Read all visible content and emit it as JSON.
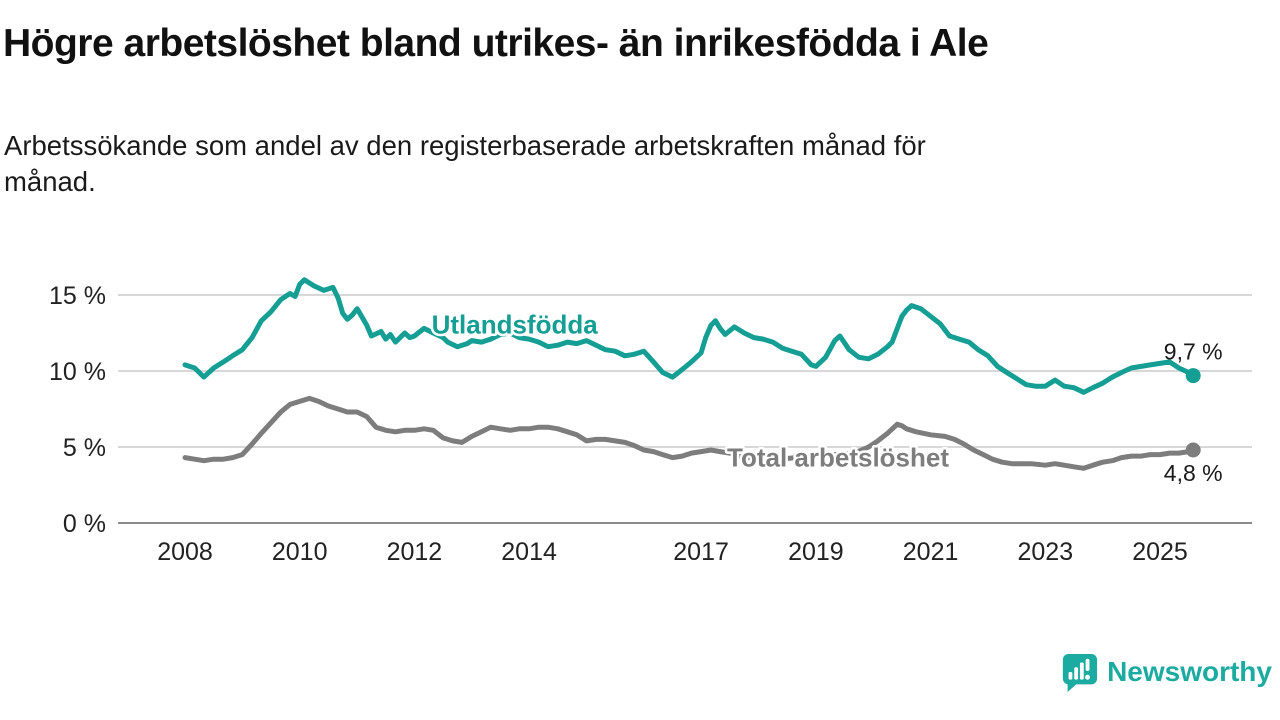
{
  "page": {
    "title": "Högre arbetslöshet bland utrikes- än inrikesfödda i Ale",
    "subtitle": "Arbetssökande som andel av den registerbaserade arbetskraften månad för månad."
  },
  "branding": {
    "name": "Newsworthy",
    "logo_icon": "bar-chart-speech-bubble",
    "color": "#1CABA1"
  },
  "chart_data": {
    "type": "line",
    "title": "Högre arbetslöshet bland utrikes- än inrikesfödda i Ale",
    "subtitle": "Arbetssökande som andel av den registerbaserade arbetskraften månad för månad.",
    "xlabel": "",
    "ylabel": "",
    "ylim": [
      0,
      16.5
    ],
    "xlim": [
      2007.2,
      2026.3
    ],
    "grid": "horizontal",
    "legend_position": "inline-labels",
    "y_ticks": [
      {
        "value": 0,
        "label": "0 %"
      },
      {
        "value": 5,
        "label": "5 %"
      },
      {
        "value": 10,
        "label": "10 %"
      },
      {
        "value": 15,
        "label": "15 %"
      }
    ],
    "x_ticks": [
      {
        "value": 2008,
        "label": "2008"
      },
      {
        "value": 2010,
        "label": "2010"
      },
      {
        "value": 2012,
        "label": "2012"
      },
      {
        "value": 2014,
        "label": "2014"
      },
      {
        "value": 2017,
        "label": "2017"
      },
      {
        "value": 2019,
        "label": "2019"
      },
      {
        "value": 2021,
        "label": "2021"
      },
      {
        "value": 2023,
        "label": "2023"
      },
      {
        "value": 2025,
        "label": "2025"
      }
    ],
    "series": [
      {
        "name": "Total arbetslöshet",
        "color": "#7D7D7D",
        "end_label": "4,8 %",
        "end_label_pos": "below",
        "points": [
          [
            2008.0,
            4.3
          ],
          [
            2008.17,
            4.2
          ],
          [
            2008.33,
            4.1
          ],
          [
            2008.5,
            4.2
          ],
          [
            2008.67,
            4.2
          ],
          [
            2008.83,
            4.3
          ],
          [
            2009.0,
            4.5
          ],
          [
            2009.17,
            5.2
          ],
          [
            2009.33,
            5.9
          ],
          [
            2009.5,
            6.6
          ],
          [
            2009.67,
            7.3
          ],
          [
            2009.83,
            7.8
          ],
          [
            2010.0,
            8.0
          ],
          [
            2010.17,
            8.2
          ],
          [
            2010.33,
            8.0
          ],
          [
            2010.5,
            7.7
          ],
          [
            2010.67,
            7.5
          ],
          [
            2010.83,
            7.3
          ],
          [
            2011.0,
            7.3
          ],
          [
            2011.17,
            7.0
          ],
          [
            2011.33,
            6.3
          ],
          [
            2011.5,
            6.1
          ],
          [
            2011.67,
            6.0
          ],
          [
            2011.83,
            6.1
          ],
          [
            2012.0,
            6.1
          ],
          [
            2012.17,
            6.2
          ],
          [
            2012.33,
            6.1
          ],
          [
            2012.5,
            5.6
          ],
          [
            2012.67,
            5.4
          ],
          [
            2012.83,
            5.3
          ],
          [
            2013.0,
            5.7
          ],
          [
            2013.17,
            6.0
          ],
          [
            2013.33,
            6.3
          ],
          [
            2013.5,
            6.2
          ],
          [
            2013.67,
            6.1
          ],
          [
            2013.83,
            6.2
          ],
          [
            2014.0,
            6.2
          ],
          [
            2014.17,
            6.3
          ],
          [
            2014.33,
            6.3
          ],
          [
            2014.5,
            6.2
          ],
          [
            2014.67,
            6.0
          ],
          [
            2014.83,
            5.8
          ],
          [
            2015.0,
            5.4
          ],
          [
            2015.17,
            5.5
          ],
          [
            2015.33,
            5.5
          ],
          [
            2015.5,
            5.4
          ],
          [
            2015.67,
            5.3
          ],
          [
            2015.83,
            5.1
          ],
          [
            2016.0,
            4.8
          ],
          [
            2016.17,
            4.7
          ],
          [
            2016.33,
            4.5
          ],
          [
            2016.5,
            4.3
          ],
          [
            2016.67,
            4.4
          ],
          [
            2016.83,
            4.6
          ],
          [
            2017.0,
            4.7
          ],
          [
            2017.17,
            4.8
          ],
          [
            2017.33,
            4.7
          ],
          [
            2017.5,
            4.6
          ],
          [
            2017.67,
            4.4
          ],
          [
            2017.83,
            4.3
          ],
          [
            2018.0,
            4.3
          ],
          [
            2018.33,
            4.2
          ],
          [
            2018.67,
            4.3
          ],
          [
            2019.0,
            4.4
          ],
          [
            2019.33,
            4.5
          ],
          [
            2019.67,
            4.6
          ],
          [
            2019.92,
            5.0
          ],
          [
            2020.08,
            5.4
          ],
          [
            2020.25,
            5.9
          ],
          [
            2020.42,
            6.5
          ],
          [
            2020.5,
            6.4
          ],
          [
            2020.58,
            6.2
          ],
          [
            2020.75,
            6.0
          ],
          [
            2021.0,
            5.8
          ],
          [
            2021.25,
            5.7
          ],
          [
            2021.42,
            5.5
          ],
          [
            2021.58,
            5.2
          ],
          [
            2021.75,
            4.8
          ],
          [
            2021.92,
            4.5
          ],
          [
            2022.08,
            4.2
          ],
          [
            2022.25,
            4.0
          ],
          [
            2022.42,
            3.9
          ],
          [
            2022.58,
            3.9
          ],
          [
            2022.75,
            3.9
          ],
          [
            2023.0,
            3.8
          ],
          [
            2023.17,
            3.9
          ],
          [
            2023.33,
            3.8
          ],
          [
            2023.5,
            3.7
          ],
          [
            2023.67,
            3.6
          ],
          [
            2023.83,
            3.8
          ],
          [
            2024.0,
            4.0
          ],
          [
            2024.17,
            4.1
          ],
          [
            2024.33,
            4.3
          ],
          [
            2024.5,
            4.4
          ],
          [
            2024.67,
            4.4
          ],
          [
            2024.83,
            4.5
          ],
          [
            2025.0,
            4.5
          ],
          [
            2025.17,
            4.6
          ],
          [
            2025.33,
            4.6
          ],
          [
            2025.5,
            4.7
          ],
          [
            2025.58,
            4.8
          ]
        ]
      },
      {
        "name": "Utlandsfödda",
        "color": "#149E94",
        "end_label": "9,7 %",
        "end_label_pos": "above",
        "points": [
          [
            2008.0,
            10.4
          ],
          [
            2008.17,
            10.2
          ],
          [
            2008.33,
            9.6
          ],
          [
            2008.5,
            10.2
          ],
          [
            2008.67,
            10.6
          ],
          [
            2008.83,
            11.0
          ],
          [
            2009.0,
            11.4
          ],
          [
            2009.17,
            12.2
          ],
          [
            2009.33,
            13.3
          ],
          [
            2009.5,
            13.9
          ],
          [
            2009.67,
            14.7
          ],
          [
            2009.83,
            15.1
          ],
          [
            2009.92,
            14.9
          ],
          [
            2010.0,
            15.7
          ],
          [
            2010.08,
            16.0
          ],
          [
            2010.25,
            15.6
          ],
          [
            2010.42,
            15.3
          ],
          [
            2010.58,
            15.5
          ],
          [
            2010.67,
            14.8
          ],
          [
            2010.75,
            13.8
          ],
          [
            2010.83,
            13.4
          ],
          [
            2010.92,
            13.7
          ],
          [
            2011.0,
            14.1
          ],
          [
            2011.08,
            13.6
          ],
          [
            2011.17,
            13.0
          ],
          [
            2011.25,
            12.3
          ],
          [
            2011.42,
            12.6
          ],
          [
            2011.5,
            12.1
          ],
          [
            2011.58,
            12.4
          ],
          [
            2011.67,
            11.9
          ],
          [
            2011.83,
            12.5
          ],
          [
            2011.92,
            12.2
          ],
          [
            2012.0,
            12.3
          ],
          [
            2012.17,
            12.8
          ],
          [
            2012.33,
            12.5
          ],
          [
            2012.5,
            12.2
          ],
          [
            2012.58,
            11.9
          ],
          [
            2012.75,
            11.6
          ],
          [
            2012.92,
            11.8
          ],
          [
            2013.0,
            12.0
          ],
          [
            2013.17,
            11.9
          ],
          [
            2013.33,
            12.1
          ],
          [
            2013.5,
            12.4
          ],
          [
            2013.67,
            12.5
          ],
          [
            2013.83,
            12.2
          ],
          [
            2014.0,
            12.1
          ],
          [
            2014.17,
            11.9
          ],
          [
            2014.33,
            11.6
          ],
          [
            2014.5,
            11.7
          ],
          [
            2014.67,
            11.9
          ],
          [
            2014.83,
            11.8
          ],
          [
            2015.0,
            12.0
          ],
          [
            2015.17,
            11.7
          ],
          [
            2015.33,
            11.4
          ],
          [
            2015.5,
            11.3
          ],
          [
            2015.67,
            11.0
          ],
          [
            2015.83,
            11.1
          ],
          [
            2016.0,
            11.3
          ],
          [
            2016.17,
            10.6
          ],
          [
            2016.33,
            9.9
          ],
          [
            2016.5,
            9.6
          ],
          [
            2016.67,
            10.1
          ],
          [
            2016.83,
            10.6
          ],
          [
            2017.0,
            11.2
          ],
          [
            2017.08,
            12.2
          ],
          [
            2017.17,
            13.0
          ],
          [
            2017.25,
            13.3
          ],
          [
            2017.33,
            12.8
          ],
          [
            2017.42,
            12.4
          ],
          [
            2017.58,
            12.9
          ],
          [
            2017.75,
            12.5
          ],
          [
            2017.92,
            12.2
          ],
          [
            2018.08,
            12.1
          ],
          [
            2018.25,
            11.9
          ],
          [
            2018.42,
            11.5
          ],
          [
            2018.58,
            11.3
          ],
          [
            2018.75,
            11.1
          ],
          [
            2018.92,
            10.4
          ],
          [
            2019.0,
            10.3
          ],
          [
            2019.17,
            10.9
          ],
          [
            2019.33,
            12.0
          ],
          [
            2019.42,
            12.3
          ],
          [
            2019.58,
            11.4
          ],
          [
            2019.75,
            10.9
          ],
          [
            2019.92,
            10.8
          ],
          [
            2020.08,
            11.1
          ],
          [
            2020.25,
            11.6
          ],
          [
            2020.33,
            11.9
          ],
          [
            2020.42,
            12.8
          ],
          [
            2020.5,
            13.6
          ],
          [
            2020.58,
            14.0
          ],
          [
            2020.67,
            14.3
          ],
          [
            2020.83,
            14.1
          ],
          [
            2021.0,
            13.6
          ],
          [
            2021.17,
            13.1
          ],
          [
            2021.33,
            12.3
          ],
          [
            2021.5,
            12.1
          ],
          [
            2021.67,
            11.9
          ],
          [
            2021.83,
            11.4
          ],
          [
            2022.0,
            11.0
          ],
          [
            2022.17,
            10.3
          ],
          [
            2022.33,
            9.9
          ],
          [
            2022.5,
            9.5
          ],
          [
            2022.67,
            9.1
          ],
          [
            2022.83,
            9.0
          ],
          [
            2023.0,
            9.0
          ],
          [
            2023.17,
            9.4
          ],
          [
            2023.33,
            9.0
          ],
          [
            2023.5,
            8.9
          ],
          [
            2023.67,
            8.6
          ],
          [
            2023.83,
            8.9
          ],
          [
            2024.0,
            9.2
          ],
          [
            2024.17,
            9.6
          ],
          [
            2024.33,
            9.9
          ],
          [
            2024.5,
            10.2
          ],
          [
            2024.67,
            10.3
          ],
          [
            2024.83,
            10.4
          ],
          [
            2025.0,
            10.5
          ],
          [
            2025.17,
            10.6
          ],
          [
            2025.33,
            10.2
          ],
          [
            2025.5,
            9.9
          ],
          [
            2025.58,
            9.7
          ]
        ]
      }
    ],
    "series_labels": [
      {
        "text": "Utlandsfödda",
        "x": 2012.3,
        "y": 13.05,
        "color": "#149E94"
      },
      {
        "text": "Total arbetslöshet",
        "x": 2017.45,
        "y": 4.3,
        "color": "#7D7D7D"
      }
    ]
  }
}
